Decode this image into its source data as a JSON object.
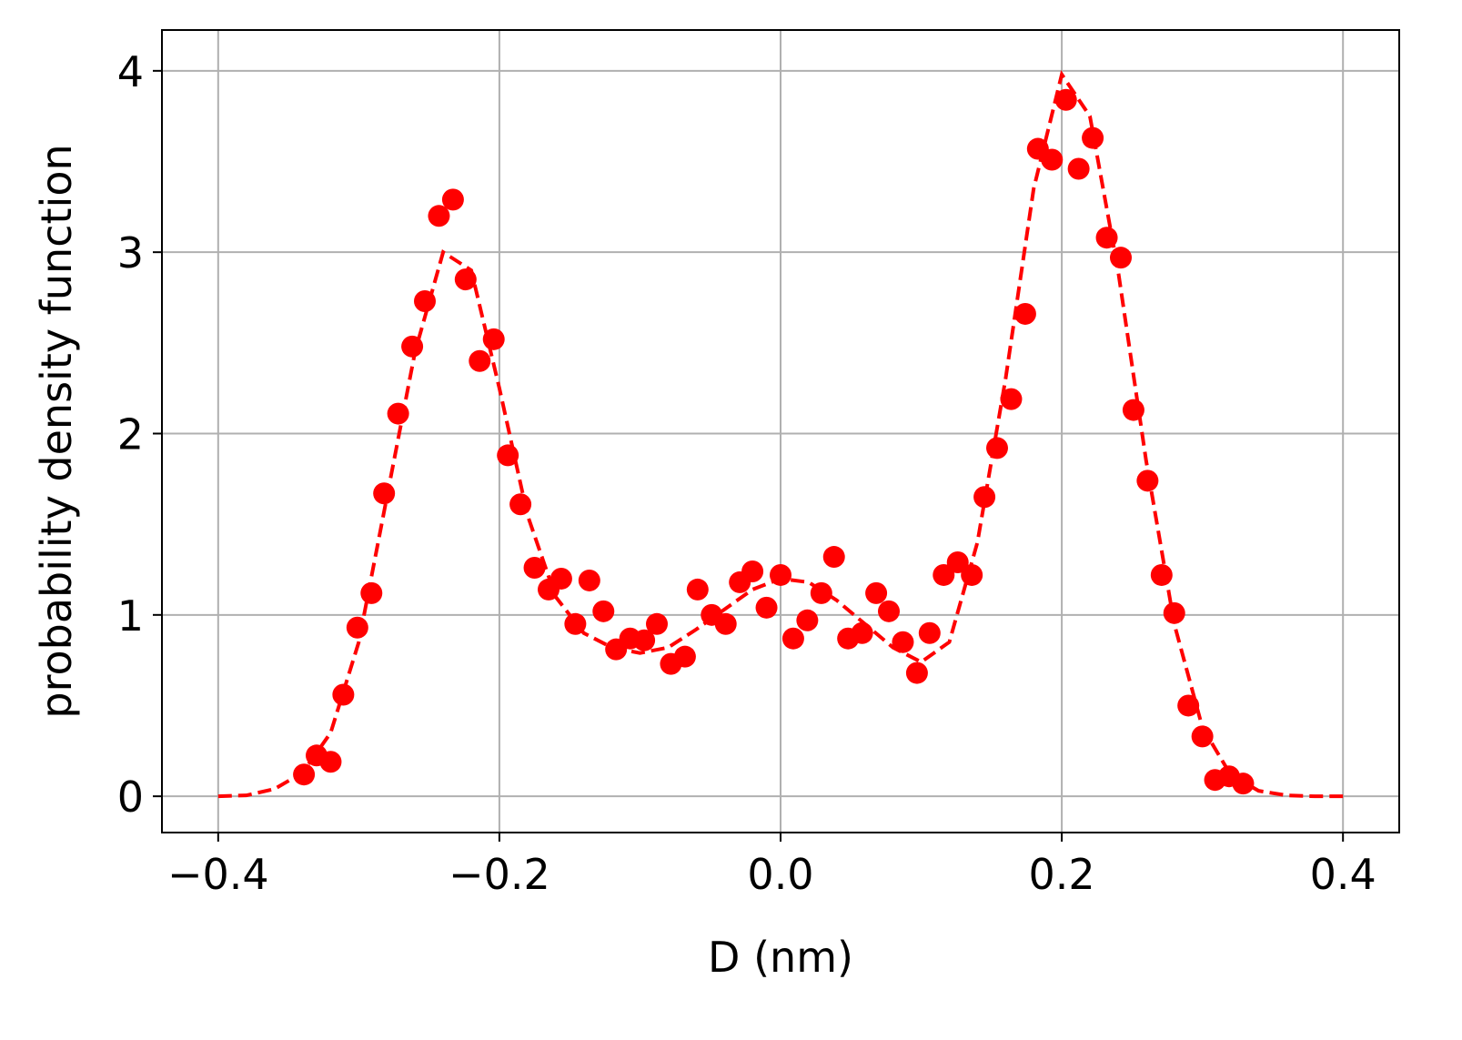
{
  "chart_data": {
    "type": "scatter",
    "xlabel": "D (nm)",
    "ylabel": "probability density function",
    "xlim": [
      -0.44,
      0.44
    ],
    "ylim": [
      -0.2,
      4.225
    ],
    "xticks": [
      {
        "value": -0.4,
        "label": "−0.4"
      },
      {
        "value": -0.2,
        "label": "−0.2"
      },
      {
        "value": 0.0,
        "label": "0.0"
      },
      0.2,
      0.4
    ],
    "yticks": [
      0,
      1,
      2,
      3,
      4
    ],
    "grid": true,
    "series": [
      {
        "color": "#ff0000",
        "marker": "o",
        "x": [
          -0.339,
          -0.33,
          -0.32,
          -0.311,
          -0.301,
          -0.291,
          -0.282,
          -0.272,
          -0.262,
          -0.253,
          -0.243,
          -0.233,
          -0.224,
          -0.214,
          -0.204,
          -0.194,
          -0.185,
          -0.175,
          -0.165,
          -0.156,
          -0.146,
          -0.136,
          -0.126,
          -0.117,
          -0.107,
          -0.097,
          -0.088,
          -0.078,
          -0.068,
          -0.059,
          -0.049,
          -0.039,
          -0.029,
          -0.02,
          -0.01,
          0.0,
          0.009,
          0.019,
          0.029,
          0.038,
          0.048,
          0.058,
          0.068,
          0.077,
          0.087,
          0.097,
          0.106,
          0.116,
          0.126,
          0.136,
          0.145,
          0.154,
          0.164,
          0.174,
          0.183,
          0.193,
          0.203,
          0.212,
          0.222,
          0.232,
          0.242,
          0.251,
          0.261,
          0.271,
          0.28,
          0.29,
          0.3,
          0.309,
          0.319,
          0.329
        ],
        "values": [
          0.12,
          0.225,
          0.19,
          0.56,
          0.93,
          1.12,
          1.67,
          2.11,
          2.48,
          2.73,
          3.2,
          3.29,
          2.85,
          2.4,
          2.52,
          1.88,
          1.61,
          1.26,
          1.14,
          1.2,
          0.95,
          1.19,
          1.02,
          0.81,
          0.87,
          0.86,
          0.95,
          0.73,
          0.77,
          1.14,
          1.0,
          0.95,
          1.18,
          1.24,
          1.04,
          1.22,
          0.87,
          0.97,
          1.12,
          1.32,
          0.87,
          0.9,
          1.12,
          1.02,
          0.85,
          0.68,
          0.9,
          1.22,
          1.29,
          1.22,
          1.65,
          1.92,
          2.19,
          2.66,
          3.57,
          3.51,
          3.84,
          3.46,
          3.63,
          3.08,
          2.97,
          2.13,
          1.74,
          1.22,
          1.01,
          0.5,
          0.33,
          0.09,
          0.11,
          0.07
        ]
      },
      {
        "color": "#ff0000",
        "linestyle": "dashed",
        "x": [
          -0.4,
          -0.38,
          -0.36,
          -0.34,
          -0.32,
          -0.3,
          -0.28,
          -0.26,
          -0.24,
          -0.22,
          -0.2,
          -0.18,
          -0.16,
          -0.14,
          -0.12,
          -0.1,
          -0.08,
          -0.06,
          -0.04,
          -0.02,
          0.0,
          0.02,
          0.04,
          0.06,
          0.08,
          0.1,
          0.12,
          0.14,
          0.16,
          0.18,
          0.2,
          0.22,
          0.24,
          0.26,
          0.28,
          0.3,
          0.32,
          0.34,
          0.36,
          0.38,
          0.4
        ],
        "values": [
          0.0,
          0.005,
          0.04,
          0.13,
          0.35,
          0.85,
          1.65,
          2.45,
          3.0,
          2.9,
          2.25,
          1.55,
          1.1,
          0.9,
          0.82,
          0.79,
          0.82,
          0.92,
          1.03,
          1.14,
          1.2,
          1.18,
          1.08,
          0.95,
          0.82,
          0.74,
          0.85,
          1.4,
          2.3,
          3.35,
          3.98,
          3.75,
          2.9,
          1.85,
          0.95,
          0.38,
          0.12,
          0.03,
          0.005,
          0.0,
          0.0
        ]
      }
    ]
  }
}
